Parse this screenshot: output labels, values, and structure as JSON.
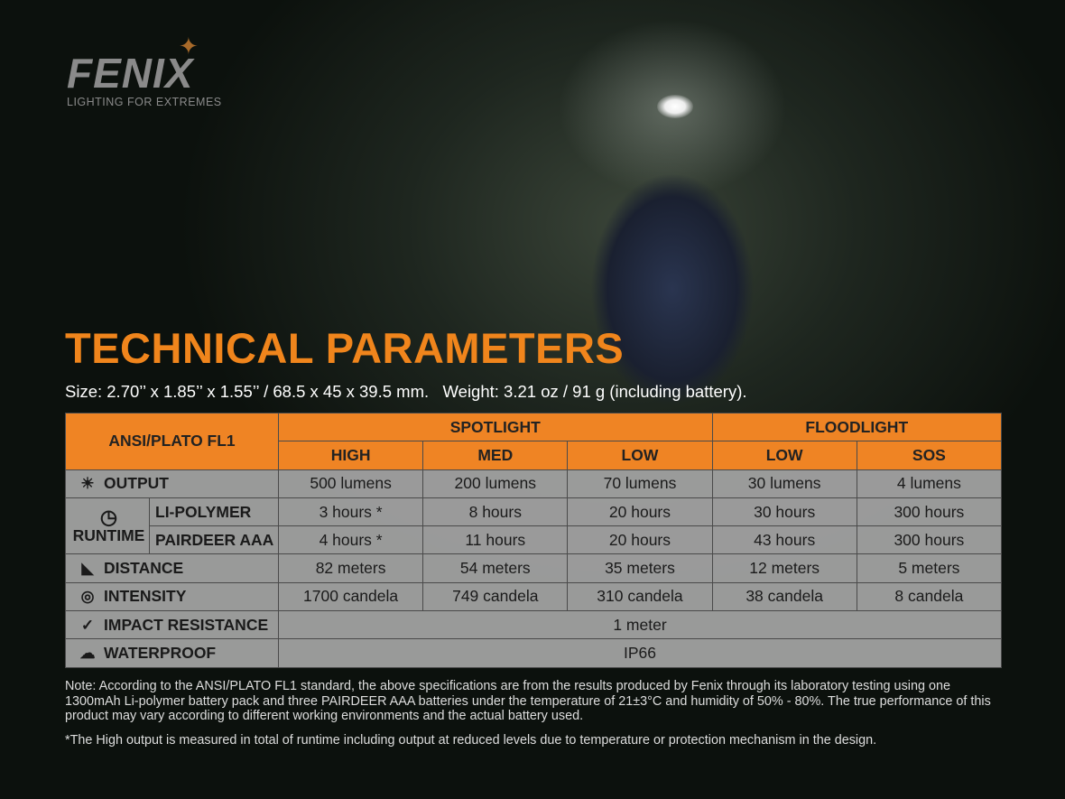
{
  "logo": {
    "brand": "FENIX",
    "tagline": "LIGHTING FOR EXTREMES"
  },
  "title": "TECHNICAL PARAMETERS",
  "size_line": "Size: 2.70’’ x 1.85’’ x 1.55’’ / 68.5 x 45 x 39.5 mm.   Weight: 3.21 oz / 91 g (including battery).",
  "colors": {
    "accent": "#ef8424",
    "cell": "#a5a5a5"
  },
  "table": {
    "corner": "ANSI/PLATO FL1",
    "groups": [
      "SPOTLIGHT",
      "FLOODLIGHT"
    ],
    "modes": [
      "HIGH",
      "MED",
      "LOW",
      "LOW",
      "SOS"
    ],
    "output": {
      "label": "OUTPUT",
      "icon": "output-rays-icon",
      "values": [
        "500 lumens",
        "200 lumens",
        "70 lumens",
        "30 lumens",
        "4 lumens"
      ]
    },
    "runtime": {
      "label": "RUNTIME",
      "icon": "clock-icon",
      "li": {
        "label": "LI-POLYMER",
        "values": [
          "3 hours *",
          "8 hours",
          "20 hours",
          "30 hours",
          "300 hours"
        ]
      },
      "aaa": {
        "label": "PAIRDEER AAA",
        "values": [
          "4 hours *",
          "11 hours",
          "20 hours",
          "43 hours",
          "300 hours"
        ]
      }
    },
    "distance": {
      "label": "DISTANCE",
      "icon": "beam-distance-icon",
      "values": [
        "82 meters",
        "54 meters",
        "35 meters",
        "12 meters",
        "5 meters"
      ]
    },
    "intensity": {
      "label": "INTENSITY",
      "icon": "target-icon",
      "values": [
        "1700 candela",
        "749 candela",
        "310 candela",
        "38 candela",
        "8 candela"
      ]
    },
    "impact": {
      "label": "IMPACT RESISTANCE",
      "icon": "impact-icon",
      "value": "1 meter"
    },
    "waterproof": {
      "label": "WATERPROOF",
      "icon": "rain-cloud-icon",
      "value": "IP66"
    }
  },
  "note": "Note: According to the ANSI/PLATO FL1 standard, the above specifications are from the results produced by Fenix through its laboratory testing using one 1300mAh Li-polymer battery pack and three PAIRDEER AAA batteries under the temperature of 21±3°C and humidity of 50% - 80%. The true performance of this product may vary according to different working environments and the actual battery used.",
  "footnote": "*The High output is measured in total of runtime including output at reduced levels due to temperature or protection mechanism in the design."
}
